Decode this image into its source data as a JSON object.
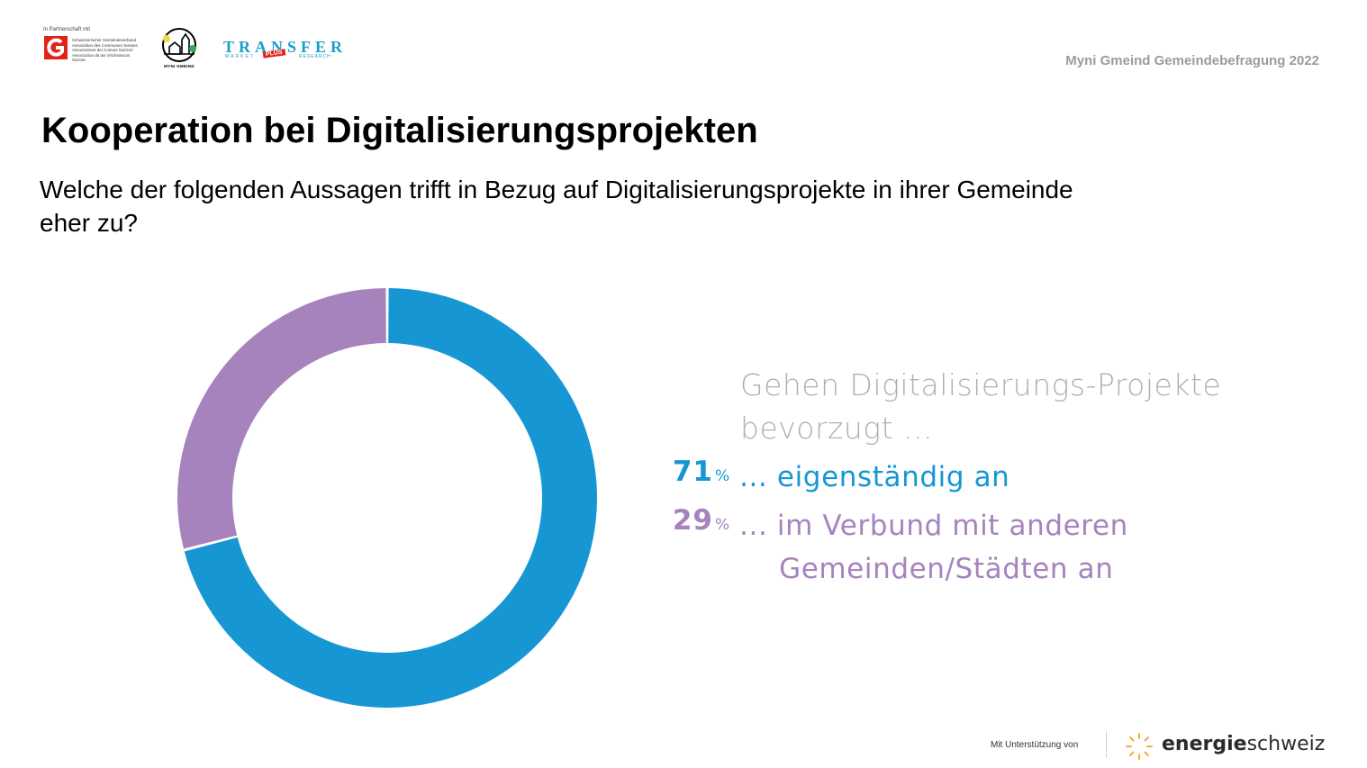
{
  "header": {
    "partner_note": "In Partnerschaft mit",
    "logo_sgv_lines": [
      "Schweizerischer Gemeindeverband",
      "Association des Communes Suisses",
      "Associazione dei Comuni Svizzeri",
      "Associaziun da las Vischnancas Svizras"
    ],
    "logo_myni_caption": "MYNI GMEIND",
    "logo_transfer_main": "TRANSFER",
    "logo_transfer_left": "MARKET",
    "logo_transfer_plus": "PLUS",
    "logo_transfer_right": "RESEARCH",
    "survey_label": "Myni Gmeind Gemeindebefragung 2022"
  },
  "title": "Kooperation bei Digitalisierungsprojekten",
  "question": "Welche der folgenden Aussagen trifft in Bezug auf Digitalisierungsprojekte in ihrer Gemeinde eher zu?",
  "legend": {
    "intro": "Gehen Digitalisierungs-Projekte bevorzugt ...",
    "percent_sign": "%",
    "items": [
      {
        "value": "71",
        "text": "... eigenständig an",
        "color": "#1697d4"
      },
      {
        "value": "29",
        "text": "... im Verbund mit anderen",
        "text_cont": "Gemeinden/Städten an",
        "color": "#a683bd"
      }
    ]
  },
  "chart_data": {
    "type": "pie",
    "title": "",
    "categories": [
      "... eigenständig an",
      "... im Verbund mit anderen Gemeinden/Städten an"
    ],
    "values": [
      71,
      29
    ],
    "unit": "%",
    "colors": [
      "#1697d4",
      "#a683bd"
    ]
  },
  "footer": {
    "note": "Mit Unterstützung von",
    "brand_bold": "energie",
    "brand_light": "schweiz"
  }
}
